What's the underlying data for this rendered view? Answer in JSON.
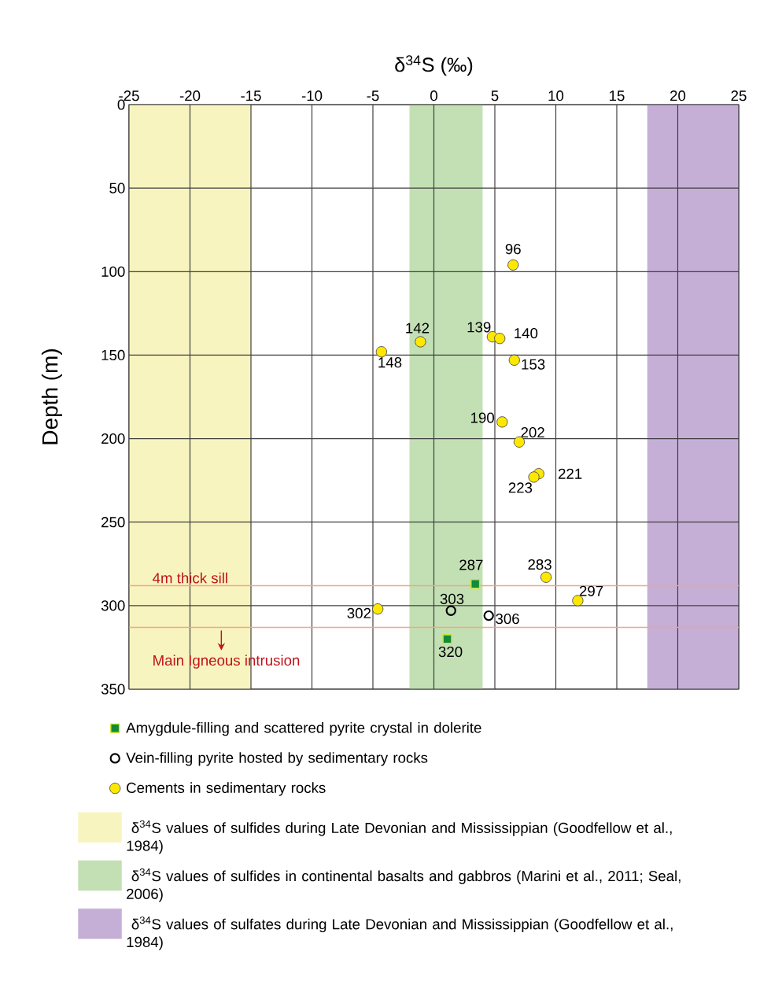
{
  "chart_data": {
    "type": "scatter",
    "xlabel": "δ$^{34}$S (‰)",
    "ylabel": "Depth (m)",
    "xlim": [
      -25,
      25
    ],
    "xticks": [
      -25,
      -20,
      -15,
      -10,
      -5,
      0,
      5,
      10,
      15,
      20,
      25
    ],
    "ylim": [
      350,
      0
    ],
    "yticks": [
      0,
      50,
      100,
      150,
      200,
      250,
      300,
      350
    ],
    "grid": true,
    "legend": "bottom",
    "data_labels": true,
    "series": [
      {
        "name": "Amygdule-filling and scattered pyrite crystal in dolerite",
        "color": "#108a3c",
        "marker": "square",
        "x": [
          3.4,
          1.1
        ],
        "values": [
          287,
          320
        ]
      },
      {
        "name": "Vein-filling pyrite hosted by sedimentary rocks",
        "color": "#000000",
        "marker": "circle",
        "x": [
          1.4,
          4.5
        ],
        "values": [
          303,
          306
        ]
      },
      {
        "name": "Cements in sedimentary rocks",
        "color": "#ffe800",
        "marker": "circle",
        "x": [
          6.5,
          4.8,
          5.4,
          -1.1,
          -4.3,
          6.6,
          5.6,
          7.0,
          8.6,
          8.2,
          9.2,
          11.8,
          -4.6
        ],
        "values": [
          96,
          139,
          140,
          142,
          148,
          153,
          190,
          202,
          221,
          223,
          283,
          297,
          302
        ]
      }
    ],
    "bands": [
      {
        "axis": "x",
        "from": -25,
        "to": -15,
        "color": "#f8f4bf",
        "label": "δ$^{34}$S values of sulfides during Late Devonian and Mississippian (Goodfellow et al., 1984)"
      },
      {
        "axis": "x",
        "from": -2,
        "to": 4,
        "color": "#c3e0b5",
        "label": "δ$^{34}$S values of sulfides in continental basalts and gabbros (Marini et al., 2011; Seal, 2006)"
      },
      {
        "axis": "x",
        "from": 17.5,
        "to": 25,
        "color": "#c6afd7",
        "label": "δ$^{34}$S values of sulfates during Late Devonian and Mississippian (Goodfellow et al., 1984)"
      }
    ],
    "ref_lines": [
      {
        "axis": "y",
        "value": 288,
        "color": "#f4a582",
        "label": "4m thick sill"
      },
      {
        "axis": "y",
        "value": 313,
        "color": "#f4a582",
        "label": "Main Igneous intrusion"
      }
    ]
  }
}
